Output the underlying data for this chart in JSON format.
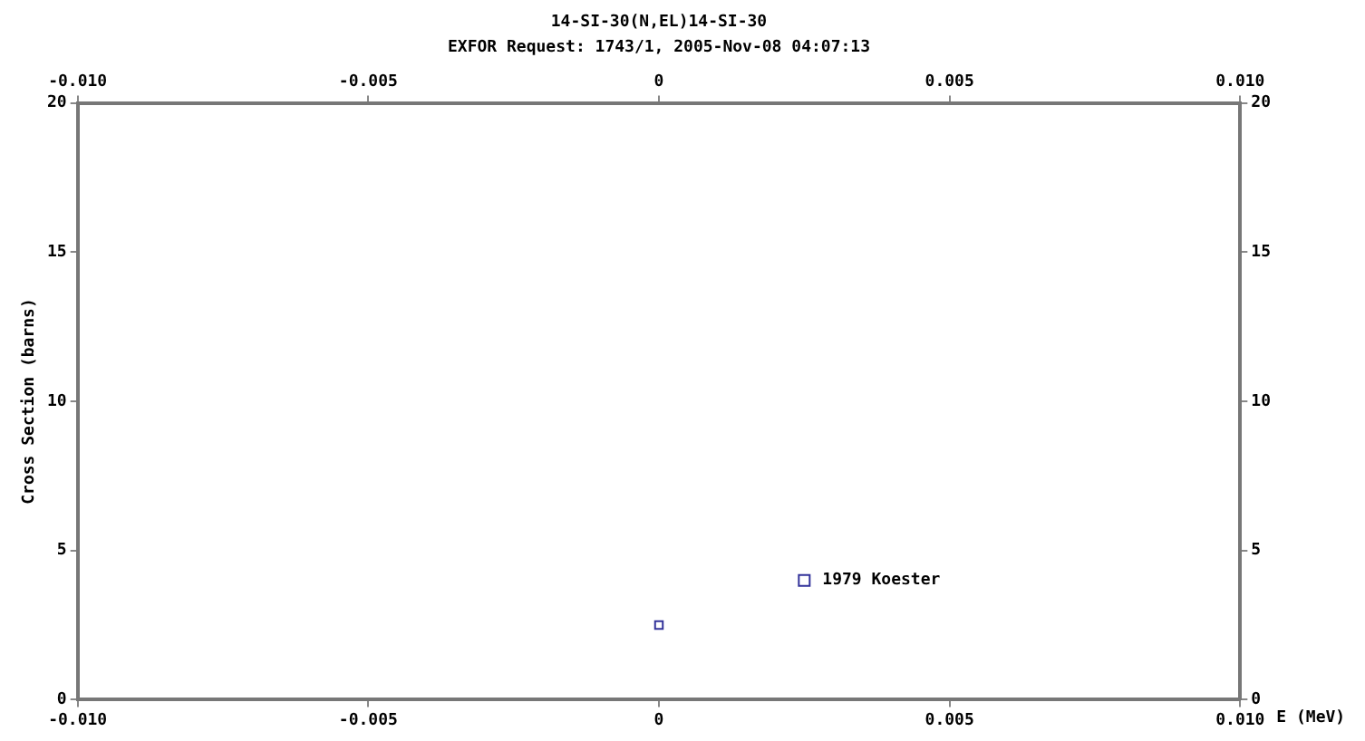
{
  "chart_data": {
    "type": "scatter",
    "title": "14-SI-30(N,EL)14-SI-30",
    "subtitle": "EXFOR Request: 1743/1, 2005-Nov-08 04:07:13",
    "xlabel": "E (MeV)",
    "ylabel": "Cross Section (barns)",
    "series": [
      {
        "name": "1979 Koester",
        "color": "#33339a",
        "x": [
          0
        ],
        "values": [
          2.5
        ]
      }
    ],
    "marker": "square",
    "legend": "bottom right",
    "grid": false,
    "xlim": [
      -0.01,
      0.01
    ],
    "xticks": [
      {
        "value": -0.01,
        "label": "-0.010"
      },
      {
        "value": -0.005,
        "label": "-0.005"
      },
      0,
      {
        "value": 0.005,
        "label": "0.005"
      },
      {
        "value": 0.01,
        "label": "0.010"
      }
    ],
    "x2lim": [
      -0.01,
      0.01
    ],
    "x2ticks": [
      {
        "value": -0.01,
        "label": "-0.010"
      },
      {
        "value": -0.005,
        "label": "-0.005"
      },
      0,
      {
        "value": 0.005,
        "label": "0.005"
      },
      {
        "value": 0.01,
        "label": "0.010"
      }
    ],
    "ylim": [
      0,
      20
    ],
    "yticks": [
      0,
      5,
      10,
      15,
      20
    ],
    "y2lim": [
      0,
      20
    ],
    "y2ticks": [
      0,
      5,
      10,
      15,
      20
    ]
  }
}
